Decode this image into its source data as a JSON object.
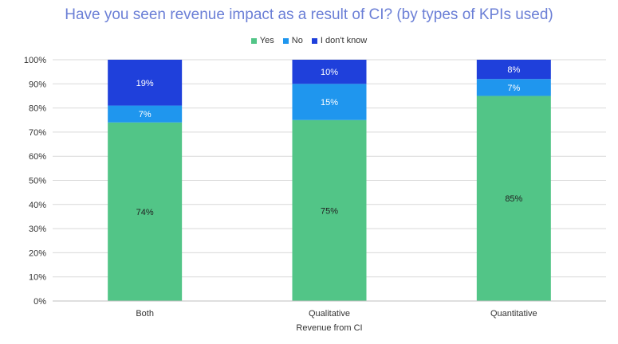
{
  "chart_data": {
    "type": "bar",
    "stacked": true,
    "title": "Have you seen revenue impact as a result of CI? (by types of KPIs used)",
    "xlabel": "Revenue from CI",
    "ylabel": "",
    "ylim": [
      0,
      100
    ],
    "yticks": [
      "0%",
      "10%",
      "20%",
      "30%",
      "40%",
      "50%",
      "60%",
      "70%",
      "80%",
      "90%",
      "100%"
    ],
    "categories": [
      "Both",
      "Qualitative",
      "Quantitative"
    ],
    "series": [
      {
        "name": "Yes",
        "color": "#52c587",
        "values": [
          74,
          75,
          85
        ],
        "labels": [
          "74%",
          "75%",
          "85%"
        ]
      },
      {
        "name": "No",
        "color": "#1f96ee",
        "values": [
          7,
          15,
          7
        ],
        "labels": [
          "7%",
          "15%",
          "7%"
        ]
      },
      {
        "name": "I don't know",
        "color": "#1f40db",
        "values": [
          19,
          10,
          8
        ],
        "labels": [
          "19%",
          "10%",
          "8%"
        ]
      }
    ],
    "legend_position": "top-center",
    "grid": true
  }
}
